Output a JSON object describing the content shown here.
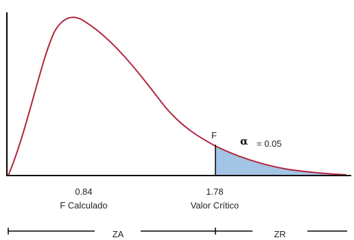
{
  "colors": {
    "curve": "#b0243a",
    "rejection_fill": "#a3c4e4",
    "axis": "#000000",
    "text": "#222222"
  },
  "markers": {
    "f_calculado": {
      "value": "0.84",
      "label": "F Calculado"
    },
    "valor_critico": {
      "value": "1.78",
      "label": "Valor Crítico"
    }
  },
  "critical_label": "F",
  "alpha": {
    "symbol": "α",
    "text": "= 0.05"
  },
  "zones": {
    "acceptance": "ZA",
    "rejection": "ZR"
  }
}
